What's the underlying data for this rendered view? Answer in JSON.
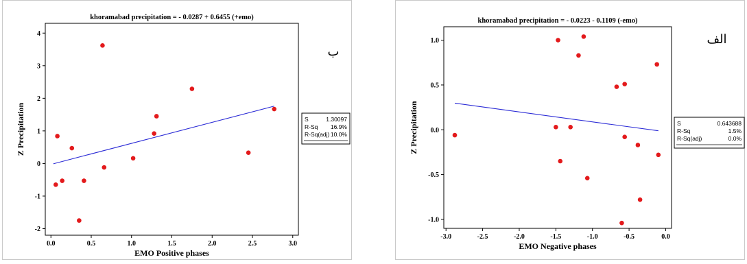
{
  "charts": [
    {
      "id": "left",
      "letter": "ب",
      "stats_labels": [
        "S",
        "R-Sq",
        "R-Sq(adj)"
      ],
      "stats_values": [
        "1.30097",
        "16.9%",
        "10.0%"
      ]
    },
    {
      "id": "right",
      "letter": "الف",
      "stats_labels": [
        "S",
        "R-Sq",
        "R-Sq(adj)"
      ],
      "stats_values": [
        "0.643688",
        "1.5%",
        "0.0%"
      ]
    }
  ],
  "chart_data": [
    {
      "type": "scatter",
      "title": "khoramabad precipitation =  - 0.0287 + 0.6455 (+emo)",
      "xlabel": "EMO Positive phases",
      "ylabel": "Z Precipitation",
      "xlim": [
        -0.07,
        3.07
      ],
      "ylim": [
        -2.2,
        4.3
      ],
      "xticks": [
        0.0,
        0.5,
        1.0,
        1.5,
        2.0,
        2.5,
        3.0
      ],
      "xtick_labels": [
        "0.0",
        "0.5",
        "1.0",
        "1.5",
        "2.0",
        "2.5",
        "3.0"
      ],
      "yticks": [
        -2,
        -1,
        0,
        1,
        2,
        3,
        4
      ],
      "ytick_labels": [
        "-2",
        "-1",
        "0",
        "1",
        "2",
        "3",
        "4"
      ],
      "grid": false,
      "point_color": "#e31a1c",
      "line_color": "#2b2bd6",
      "points": [
        {
          "x": 0.06,
          "y": -0.65
        },
        {
          "x": 0.08,
          "y": 0.84
        },
        {
          "x": 0.14,
          "y": -0.53
        },
        {
          "x": 0.26,
          "y": 0.47
        },
        {
          "x": 0.35,
          "y": -1.75
        },
        {
          "x": 0.41,
          "y": -0.53
        },
        {
          "x": 0.64,
          "y": 3.62
        },
        {
          "x": 0.66,
          "y": -0.12
        },
        {
          "x": 1.02,
          "y": 0.16
        },
        {
          "x": 1.28,
          "y": 0.92
        },
        {
          "x": 1.31,
          "y": 1.45
        },
        {
          "x": 1.75,
          "y": 2.29
        },
        {
          "x": 2.45,
          "y": 0.33
        },
        {
          "x": 2.77,
          "y": 1.67
        }
      ],
      "fit": {
        "intercept": -0.0287,
        "slope": 0.6455,
        "x_range": [
          0.03,
          2.77
        ]
      }
    },
    {
      "type": "scatter",
      "title": "khoramabad precipitation =  - 0.0223 - 0.1109 (-emo)",
      "xlabel": "EMO Negative phases",
      "ylabel": "Z Precipitation",
      "xlim": [
        -3.03,
        0.08
      ],
      "ylim": [
        -1.1,
        1.15
      ],
      "xticks": [
        -3.0,
        -2.5,
        -2.0,
        -1.5,
        -1.0,
        -0.5,
        0.0
      ],
      "xtick_labels": [
        "-3.0",
        "-2.5",
        "-2.0",
        "-1.5",
        "-1.0",
        "-0.5",
        "0.0"
      ],
      "yticks": [
        -1.0,
        -0.5,
        0.0,
        0.5,
        1.0
      ],
      "ytick_labels": [
        "-1.0",
        "-0.5",
        "0.0",
        "0.5",
        "1.0"
      ],
      "grid": false,
      "point_color": "#e31a1c",
      "line_color": "#2b2bd6",
      "points": [
        {
          "x": -2.88,
          "y": -0.06
        },
        {
          "x": -1.5,
          "y": 0.03
        },
        {
          "x": -1.47,
          "y": 1.0
        },
        {
          "x": -1.44,
          "y": -0.35
        },
        {
          "x": -1.3,
          "y": 0.03
        },
        {
          "x": -1.19,
          "y": 0.83
        },
        {
          "x": -1.12,
          "y": 1.04
        },
        {
          "x": -1.07,
          "y": -0.54
        },
        {
          "x": -0.67,
          "y": 0.48
        },
        {
          "x": -0.6,
          "y": -1.04
        },
        {
          "x": -0.56,
          "y": 0.51
        },
        {
          "x": -0.56,
          "y": -0.08
        },
        {
          "x": -0.38,
          "y": -0.17
        },
        {
          "x": -0.35,
          "y": -0.78
        },
        {
          "x": -0.12,
          "y": 0.73
        },
        {
          "x": -0.1,
          "y": -0.28
        }
      ],
      "fit": {
        "intercept": -0.0223,
        "slope": -0.1109,
        "x_range": [
          -2.88,
          -0.1
        ]
      }
    }
  ]
}
